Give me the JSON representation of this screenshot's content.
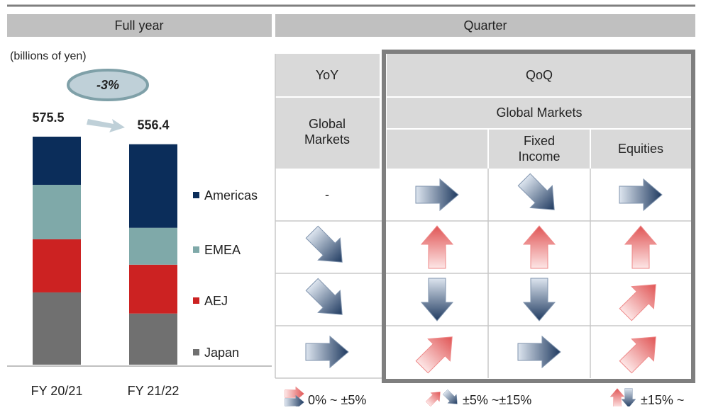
{
  "header": {
    "left": "Full year",
    "right": "Quarter"
  },
  "chart_data": {
    "type": "bar",
    "stacked": true,
    "unit_label": "(billions of yen)",
    "categories": [
      "FY 20/21",
      "FY 21/22"
    ],
    "series": [
      {
        "name": "Japan",
        "color": "#707070",
        "values": [
          182.4,
          129.1
        ]
      },
      {
        "name": "AEJ",
        "color": "#cc2222",
        "values": [
          134,
          123.3
        ]
      },
      {
        "name": "EMEA",
        "color": "#7fa9a9",
        "values": [
          137.6,
          93
        ]
      },
      {
        "name": "Americas",
        "color": "#0b2d5a",
        "values": [
          121.5,
          211
        ]
      }
    ],
    "totals": [
      575.5,
      556.4
    ],
    "annotation": "-3%"
  },
  "table": {
    "yoy": "YoY",
    "qoq": "QoQ",
    "yoy_sub": "Global Markets",
    "qoq_sub": "Global Markets",
    "columns": [
      "Fixed Income",
      "Equities"
    ],
    "empty_cell": "-"
  },
  "legend": [
    "0% ~ ±5%",
    "±5% ~±15%",
    "±15% ~"
  ]
}
